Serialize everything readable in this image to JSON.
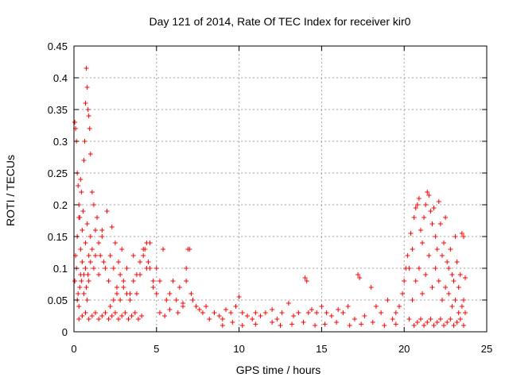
{
  "chart_data": {
    "type": "scatter",
    "title": "Day 121 of 2014, Rate Of TEC Index for receiver kir0",
    "xlabel": "GPS time / hours",
    "ylabel": "ROTI / TECUs",
    "xlim": [
      0,
      25
    ],
    "ylim": [
      0,
      0.45
    ],
    "x_ticks": [
      "0",
      "5",
      "10",
      "15",
      "20",
      "25"
    ],
    "y_ticks": [
      "0",
      "0.05",
      "0.1",
      "0.15",
      "0.2",
      "0.25",
      "0.3",
      "0.35",
      "0.4",
      "0.45"
    ],
    "grid": true,
    "legend": "none",
    "marker": "+",
    "marker_color": "#ff0000",
    "series": [
      {
        "name": "ROTI",
        "x": [
          0.05,
          0.1,
          0.15,
          0.2,
          0.25,
          0.3,
          0.35,
          0.4,
          0.45,
          0.5,
          0.55,
          0.6,
          0.65,
          0.7,
          0.75,
          0.8,
          0.85,
          0.9,
          0.95,
          1.0,
          0.05,
          0.1,
          0.15,
          0.2,
          0.3,
          0.4,
          0.5,
          0.6,
          0.7,
          0.8,
          0.9,
          1.0,
          1.1,
          1.2,
          1.3,
          1.4,
          1.5,
          1.6,
          1.7,
          1.8,
          0.2,
          0.25,
          0.3,
          0.35,
          0.4,
          0.45,
          0.6,
          0.7,
          0.75,
          0.8,
          0.85,
          0.9,
          1.0,
          1.1,
          1.2,
          1.3,
          1.5,
          1.7,
          1.9,
          2.0,
          2.1,
          2.2,
          2.3,
          2.4,
          2.5,
          2.6,
          2.7,
          2.8,
          2.9,
          3.0,
          3.2,
          3.4,
          3.6,
          3.8,
          4.0,
          4.2,
          4.4,
          4.6,
          4.8,
          5.0,
          2.2,
          2.4,
          2.6,
          2.8,
          3.0,
          3.2,
          3.4,
          3.6,
          3.8,
          4.0,
          4.2,
          4.3,
          4.4,
          4.5,
          4.6,
          4.8,
          5.0,
          5.2,
          5.4,
          5.6,
          5.8,
          6.0,
          6.2,
          6.4,
          6.6,
          6.8,
          7.0,
          7.2,
          7.4,
          7.6,
          7.8,
          8.0,
          5.2,
          5.5,
          5.8,
          6.3,
          6.6,
          6.8,
          6.9,
          7.1,
          8.2,
          8.5,
          8.8,
          9.0,
          9.2,
          9.5,
          9.8,
          10.0,
          10.2,
          10.5,
          10.8,
          11.0,
          11.3,
          11.6,
          12.0,
          12.3,
          12.6,
          13.0,
          13.3,
          13.6,
          14.0,
          14.1,
          14.2,
          14.4,
          14.7,
          15.0,
          15.3,
          15.6,
          16.0,
          16.3,
          16.6,
          17.0,
          17.2,
          17.3,
          17.6,
          18.0,
          18.3,
          18.6,
          19.0,
          19.3,
          9.0,
          9.6,
          10.2,
          11.0,
          12.0,
          12.5,
          13.2,
          13.9,
          14.6,
          15.2,
          15.9,
          16.7,
          17.4,
          18.1,
          18.8,
          19.5,
          19.5,
          19.7,
          19.9,
          20.0,
          20.1,
          20.2,
          20.3,
          20.4,
          20.5,
          20.6,
          20.7,
          20.8,
          20.9,
          21.0,
          21.1,
          21.2,
          21.3,
          21.4,
          21.5,
          21.6,
          21.7,
          21.8,
          21.9,
          22.0,
          22.1,
          22.2,
          22.3,
          22.4,
          22.5,
          22.6,
          22.7,
          22.8,
          22.9,
          23.0,
          23.1,
          23.2,
          23.3,
          23.4,
          23.5,
          23.6,
          20.3,
          20.5,
          20.7,
          20.9,
          21.1,
          21.3,
          21.5,
          21.7,
          21.9,
          22.1,
          22.3,
          22.5,
          22.7,
          22.9,
          23.1,
          23.3,
          23.5,
          23.7,
          23.7,
          23.6,
          20.6,
          20.8,
          21.0,
          21.2,
          21.4,
          21.6,
          21.8,
          22.0,
          22.2,
          22.4,
          22.6,
          22.8,
          23.0,
          23.2,
          23.4,
          23.6,
          0.3,
          0.5,
          0.7,
          0.9,
          1.1,
          1.3,
          1.5,
          1.7,
          1.9,
          2.1,
          2.3,
          2.5,
          2.7,
          2.9,
          3.1,
          3.3,
          3.5,
          3.7,
          3.9,
          4.1
        ],
        "y": [
          0.33,
          0.32,
          0.3,
          0.25,
          0.23,
          0.2,
          0.18,
          0.24,
          0.22,
          0.16,
          0.19,
          0.27,
          0.3,
          0.36,
          0.415,
          0.385,
          0.35,
          0.34,
          0.32,
          0.28,
          0.08,
          0.12,
          0.1,
          0.15,
          0.18,
          0.13,
          0.11,
          0.09,
          0.14,
          0.17,
          0.12,
          0.15,
          0.22,
          0.2,
          0.16,
          0.18,
          0.14,
          0.12,
          0.16,
          0.11,
          0.05,
          0.06,
          0.04,
          0.07,
          0.09,
          0.08,
          0.06,
          0.1,
          0.07,
          0.05,
          0.09,
          0.08,
          0.11,
          0.13,
          0.1,
          0.12,
          0.09,
          0.15,
          0.1,
          0.19,
          0.08,
          0.12,
          0.165,
          0.1,
          0.14,
          0.07,
          0.11,
          0.09,
          0.13,
          0.08,
          0.1,
          0.06,
          0.12,
          0.09,
          0.11,
          0.13,
          0.1,
          0.14,
          0.08,
          0.1,
          0.04,
          0.05,
          0.06,
          0.05,
          0.07,
          0.06,
          0.05,
          0.08,
          0.06,
          0.09,
          0.12,
          0.13,
          0.14,
          0.11,
          0.1,
          0.07,
          0.06,
          0.08,
          0.13,
          0.05,
          0.06,
          0.08,
          0.05,
          0.07,
          0.04,
          0.1,
          0.13,
          0.05,
          0.04,
          0.035,
          0.03,
          0.04,
          0.03,
          0.025,
          0.035,
          0.03,
          0.045,
          0.08,
          0.13,
          0.06,
          0.02,
          0.03,
          0.025,
          0.02,
          0.035,
          0.03,
          0.04,
          0.055,
          0.03,
          0.025,
          0.02,
          0.03,
          0.025,
          0.03,
          0.035,
          0.02,
          0.03,
          0.045,
          0.025,
          0.03,
          0.085,
          0.08,
          0.03,
          0.035,
          0.03,
          0.04,
          0.03,
          0.025,
          0.035,
          0.03,
          0.04,
          0.02,
          0.09,
          0.085,
          0.025,
          0.07,
          0.04,
          0.03,
          0.05,
          0.02,
          0.01,
          0.015,
          0.01,
          0.012,
          0.015,
          0.01,
          0.012,
          0.015,
          0.01,
          0.012,
          0.015,
          0.01,
          0.012,
          0.015,
          0.01,
          0.012,
          0.03,
          0.04,
          0.06,
          0.08,
          0.1,
          0.12,
          0.1,
          0.155,
          0.13,
          0.18,
          0.195,
          0.2,
          0.21,
          0.16,
          0.14,
          0.18,
          0.2,
          0.22,
          0.215,
          0.19,
          0.17,
          0.195,
          0.15,
          0.13,
          0.205,
          0.17,
          0.12,
          0.14,
          0.18,
          0.11,
          0.1,
          0.13,
          0.09,
          0.08,
          0.15,
          0.11,
          0.07,
          0.09,
          0.155,
          0.15,
          0.02,
          0.05,
          0.08,
          0.1,
          0.06,
          0.09,
          0.12,
          0.07,
          0.1,
          0.08,
          0.05,
          0.07,
          0.06,
          0.04,
          0.05,
          0.03,
          0.04,
          0.03,
          0.085,
          0.05,
          0.01,
          0.015,
          0.02,
          0.01,
          0.015,
          0.02,
          0.01,
          0.015,
          0.02,
          0.01,
          0.015,
          0.02,
          0.01,
          0.015,
          0.02,
          0.01,
          0.02,
          0.025,
          0.03,
          0.02,
          0.025,
          0.03,
          0.02,
          0.025,
          0.03,
          0.02,
          0.025,
          0.03,
          0.02,
          0.025,
          0.03,
          0.02,
          0.025,
          0.03,
          0.02,
          0.025
        ]
      }
    ]
  }
}
